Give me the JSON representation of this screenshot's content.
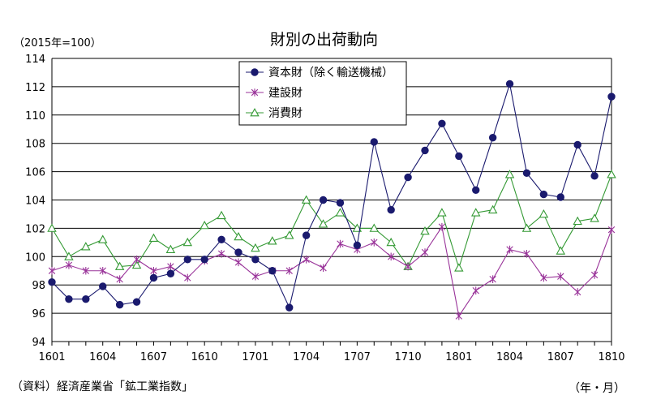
{
  "header": {
    "title": "財別の出荷動向",
    "unit_note": "（2015年=100）"
  },
  "footer": {
    "source": "（資料）経済産業省「鉱工業指数」",
    "x_unit": "（年・月）"
  },
  "chart_data": {
    "type": "line",
    "title": "財別の出荷動向",
    "ylabel": "（2015年=100）",
    "xlabel": "（年・月）",
    "ylim": [
      94,
      114
    ],
    "yticks": [
      "94",
      "96",
      "98",
      "100",
      "102",
      "104",
      "106",
      "108",
      "110",
      "112",
      "114"
    ],
    "x": [
      "1601",
      "1602",
      "1603",
      "1604",
      "1605",
      "1606",
      "1607",
      "1608",
      "1609",
      "1610",
      "1611",
      "1612",
      "1701",
      "1702",
      "1703",
      "1704",
      "1705",
      "1706",
      "1707",
      "1708",
      "1709",
      "1710",
      "1711",
      "1712",
      "1801",
      "1802",
      "1803",
      "1804",
      "1805",
      "1806",
      "1807",
      "1808",
      "1809",
      "1810"
    ],
    "xtick_labels": [
      "1601",
      "1604",
      "1607",
      "1610",
      "1701",
      "1704",
      "1707",
      "1710",
      "1801",
      "1804",
      "1807",
      "1810"
    ],
    "grid": "horizontal",
    "legend_position": "top-center",
    "series": [
      {
        "name": "資本財（除く輸送機械）",
        "color": "#1a1a6e",
        "marker": "filled-circle",
        "values": [
          98.2,
          97.0,
          97.0,
          97.9,
          96.6,
          96.8,
          98.5,
          98.8,
          99.8,
          99.8,
          101.2,
          100.3,
          99.8,
          99.0,
          96.4,
          101.5,
          104.0,
          103.8,
          100.8,
          108.1,
          103.3,
          105.6,
          107.5,
          109.4,
          107.1,
          104.7,
          108.4,
          112.2,
          105.9,
          104.4,
          104.2,
          107.9,
          105.7,
          111.3
        ]
      },
      {
        "name": "建設財",
        "color": "#993399",
        "marker": "star",
        "values": [
          99.0,
          99.4,
          99.0,
          99.0,
          98.4,
          99.8,
          99.0,
          99.3,
          98.5,
          99.7,
          100.2,
          99.6,
          98.6,
          99.0,
          99.0,
          99.8,
          99.2,
          100.9,
          100.5,
          101.0,
          100.0,
          99.3,
          100.3,
          102.1,
          95.8,
          97.6,
          98.4,
          100.5,
          100.2,
          98.5,
          98.6,
          97.5,
          98.7,
          101.9
        ]
      },
      {
        "name": "消費財",
        "color": "#339933",
        "marker": "open-triangle",
        "values": [
          102.0,
          100.0,
          100.7,
          101.2,
          99.3,
          99.4,
          101.3,
          100.5,
          101.0,
          102.2,
          102.9,
          101.4,
          100.6,
          101.1,
          101.5,
          104.0,
          102.3,
          103.1,
          102.0,
          102.0,
          101.0,
          99.3,
          101.8,
          103.1,
          99.2,
          103.1,
          103.3,
          105.8,
          102.0,
          103.0,
          100.4,
          102.5,
          102.7,
          105.8
        ]
      }
    ]
  }
}
